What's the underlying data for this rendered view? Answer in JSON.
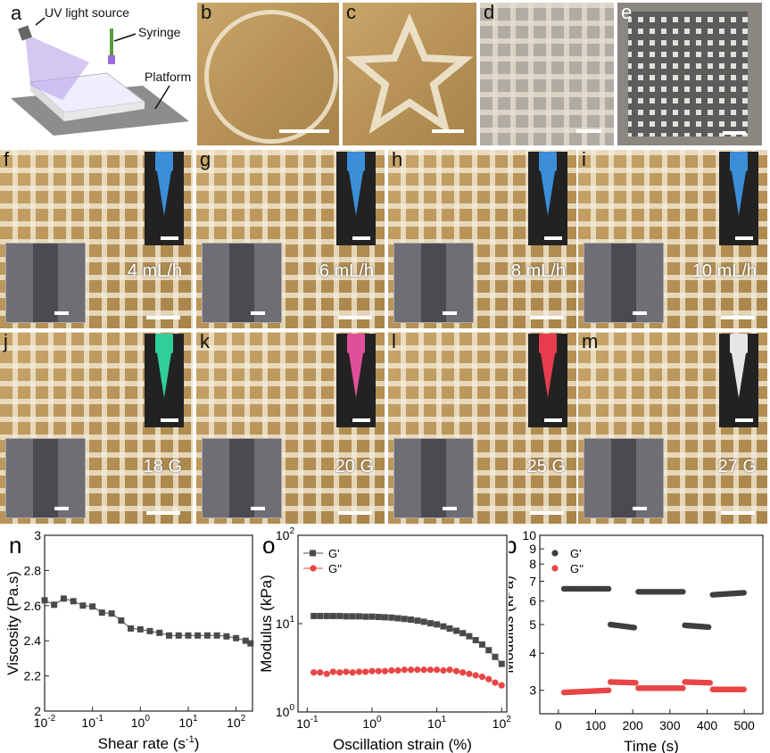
{
  "panel_a": {
    "letter": "a",
    "uv_label": "UV light source",
    "syringe_label": "Syringe",
    "platform_label": "Platform"
  },
  "top_photos": [
    {
      "letter": "b",
      "shape": "circle"
    },
    {
      "letter": "c",
      "shape": "star"
    },
    {
      "letter": "d",
      "shape": "fine-grid"
    },
    {
      "letter": "e",
      "shape": "coarse-grid"
    }
  ],
  "flow_rate_photos": [
    {
      "letter": "f",
      "label": "4 mL/h",
      "needle_color": "#3a8fd8"
    },
    {
      "letter": "g",
      "label": "6 mL/h",
      "needle_color": "#3a8fd8"
    },
    {
      "letter": "h",
      "label": "8 mL/h",
      "needle_color": "#3a8fd8"
    },
    {
      "letter": "i",
      "label": "10 mL/h",
      "needle_color": "#3a8fd8"
    }
  ],
  "gauge_photos": [
    {
      "letter": "j",
      "label": "18 G",
      "needle_color": "#2fcf9a"
    },
    {
      "letter": "k",
      "label": "20 G",
      "needle_color": "#e0509a"
    },
    {
      "letter": "l",
      "label": "25 G",
      "needle_color": "#e83c4c"
    },
    {
      "letter": "m",
      "label": "27 G",
      "needle_color": "#e6e6e6"
    }
  ],
  "chart_data": [
    {
      "id": "n",
      "letter": "n",
      "type": "line",
      "xlabel": "Shear rate (s",
      "xlabel_sup": "-1",
      "xlabel_end": ")",
      "ylabel": "Viscosity (Pa.s)",
      "xscale": "log",
      "yscale": "linear",
      "xlim": [
        0.01,
        220
      ],
      "ylim": [
        2,
        3
      ],
      "x_ticks": [
        0.01,
        0.1,
        1,
        10,
        100
      ],
      "x_tick_labels": [
        "10^-2",
        "10^-1",
        "10^0",
        "10^1",
        "10^2"
      ],
      "y_ticks": [
        2,
        2.2,
        2.4,
        2.6,
        2.8,
        3
      ],
      "y_tick_labels": [
        "2",
        "2.2",
        "2.4",
        "2.6",
        "2.8",
        "3"
      ],
      "series": [
        {
          "marker": "square",
          "color": "#4a4a4a",
          "x": [
            0.01,
            0.0158,
            0.0251,
            0.0398,
            0.0631,
            0.1,
            0.158,
            0.251,
            0.398,
            0.631,
            1,
            1.58,
            2.51,
            3.98,
            6.31,
            10,
            15.8,
            25.1,
            39.8,
            63.1,
            100,
            158,
            200
          ],
          "y": [
            2.63,
            2.605,
            2.64,
            2.625,
            2.6,
            2.595,
            2.56,
            2.555,
            2.515,
            2.47,
            2.465,
            2.455,
            2.445,
            2.43,
            2.43,
            2.43,
            2.43,
            2.43,
            2.43,
            2.425,
            2.415,
            2.4,
            2.385
          ]
        }
      ]
    },
    {
      "id": "o",
      "letter": "o",
      "type": "line",
      "xlabel": "Oscillation strain (%)",
      "ylabel": "Modulus (kPa)",
      "xscale": "log",
      "yscale": "log",
      "xlim": [
        0.072,
        120
      ],
      "ylim": [
        1,
        100
      ],
      "x_ticks": [
        0.1,
        1,
        10,
        100
      ],
      "x_tick_labels": [
        "10^-1",
        "10^0",
        "10^1",
        "10^2"
      ],
      "y_ticks": [
        1,
        10,
        100
      ],
      "y_tick_labels": [
        "10^0",
        "10^1",
        "10^2"
      ],
      "legend": "top-left",
      "series": [
        {
          "name": "G'",
          "marker": "square",
          "color": "#4a4a4a",
          "x": [
            0.126,
            0.158,
            0.2,
            0.251,
            0.316,
            0.398,
            0.501,
            0.631,
            0.794,
            1,
            1.26,
            1.58,
            2,
            2.51,
            3.16,
            3.98,
            5.01,
            6.31,
            7.94,
            10,
            12.6,
            15.8,
            20,
            25.1,
            31.6,
            39.8,
            50.1,
            63.1,
            79.4,
            100
          ],
          "y": [
            12.2,
            12.2,
            12.2,
            12.2,
            12.2,
            12.1,
            12.1,
            12.1,
            12.0,
            12.0,
            11.9,
            11.8,
            11.7,
            11.5,
            11.3,
            11.1,
            10.8,
            10.5,
            10.1,
            9.8,
            9.3,
            8.8,
            8.3,
            7.8,
            7.2,
            6.5,
            5.8,
            5.0,
            4.2,
            3.5
          ]
        },
        {
          "name": "G''",
          "marker": "circle",
          "color": "#e84545",
          "x": [
            0.126,
            0.158,
            0.2,
            0.251,
            0.316,
            0.398,
            0.501,
            0.631,
            0.794,
            1,
            1.26,
            1.58,
            2,
            2.51,
            3.16,
            3.98,
            5.01,
            6.31,
            7.94,
            10,
            12.6,
            15.8,
            20,
            25.1,
            31.6,
            39.8,
            50.1,
            63.1,
            79.4,
            100
          ],
          "y": [
            2.8,
            2.8,
            2.7,
            2.85,
            2.8,
            2.85,
            2.8,
            2.85,
            2.85,
            2.9,
            2.9,
            2.9,
            2.95,
            2.95,
            3.0,
            3.0,
            3.0,
            3.0,
            3.0,
            3.0,
            2.95,
            3.0,
            2.9,
            2.8,
            2.7,
            2.6,
            2.5,
            2.35,
            2.15,
            2.0
          ]
        }
      ]
    },
    {
      "id": "p",
      "letter": "p",
      "type": "scatter",
      "xlabel": "Time (s)",
      "ylabel": "Modulus (kPa)",
      "xscale": "linear",
      "yscale": "log",
      "xlim": [
        -50,
        550
      ],
      "ylim": [
        2.5,
        10
      ],
      "x_ticks": [
        0,
        100,
        200,
        300,
        400,
        500
      ],
      "x_tick_labels": [
        "0",
        "100",
        "200",
        "300",
        "400",
        "500"
      ],
      "y_ticks": [
        3,
        4,
        5,
        6,
        7,
        8,
        9,
        10
      ],
      "y_tick_labels": [
        "3",
        "4",
        "5",
        "6",
        "7",
        "8",
        "9",
        "10"
      ],
      "legend": "top-left",
      "series": [
        {
          "name": "G'",
          "marker": "circle",
          "color": "#3f3f3f",
          "segments": [
            {
              "t": [
                15,
                135
              ],
              "v": [
                6.6,
                6.6
              ]
            },
            {
              "t": [
                140,
                205
              ],
              "v": [
                5.0,
                4.88
              ]
            },
            {
              "t": [
                215,
                335
              ],
              "v": [
                6.45,
                6.45
              ]
            },
            {
              "t": [
                340,
                405
              ],
              "v": [
                4.97,
                4.9
              ]
            },
            {
              "t": [
                415,
                500
              ],
              "v": [
                6.3,
                6.4
              ]
            }
          ]
        },
        {
          "name": "G''",
          "marker": "circle",
          "color": "#e84545",
          "segments": [
            {
              "t": [
                15,
                135
              ],
              "v": [
                2.95,
                3.0
              ]
            },
            {
              "t": [
                140,
                210
              ],
              "v": [
                3.2,
                3.18
              ]
            },
            {
              "t": [
                215,
                335
              ],
              "v": [
                3.05,
                3.05
              ]
            },
            {
              "t": [
                340,
                410
              ],
              "v": [
                3.2,
                3.18
              ]
            },
            {
              "t": [
                415,
                500
              ],
              "v": [
                3.02,
                3.02
              ]
            }
          ]
        }
      ]
    }
  ]
}
